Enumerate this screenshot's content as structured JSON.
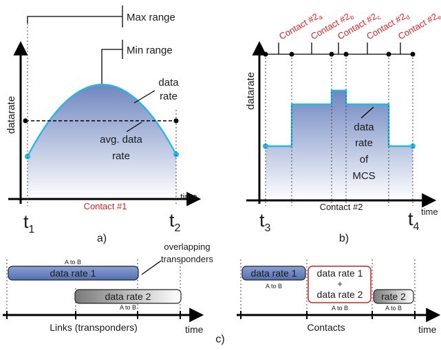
{
  "panel_a": {
    "ylabel": "datarate",
    "xlabel": "time",
    "max_range": "Max range",
    "min_range": "Min range",
    "data_rate": [
      "data",
      "rate"
    ],
    "avg_rate": [
      "avg. data",
      "rate"
    ],
    "contact": "Contact #1",
    "t_start": {
      "base": "t",
      "sub": "1"
    },
    "t_end": {
      "base": "t",
      "sub": "2"
    },
    "caption": "a)"
  },
  "panel_b": {
    "ylabel": "datarate",
    "xlabel": "time",
    "contacts": [
      {
        "base": "Contact #2",
        "sub": "a"
      },
      {
        "base": "Contact #2",
        "sub": "b"
      },
      {
        "base": "Contact #2",
        "sub": "c"
      },
      {
        "base": "Contact #2",
        "sub": "d"
      },
      {
        "base": "Contact #2",
        "sub": "e"
      }
    ],
    "mcs_label": [
      "data",
      "rate",
      "of",
      "MCS"
    ],
    "contact": "Contact #2",
    "t_start": {
      "base": "t",
      "sub": "3"
    },
    "t_end": {
      "base": "t",
      "sub": "4"
    },
    "caption": "b)"
  },
  "panel_c": {
    "left": {
      "link1": {
        "label": "data rate 1",
        "dir": "A to B"
      },
      "link2": {
        "label": "data rate 2",
        "dir": "A to B"
      },
      "overlap": [
        "overlapping",
        "transponders"
      ],
      "axis_label": "Links (transponders)",
      "time": "time"
    },
    "right": {
      "c1": {
        "label": "data rate 1",
        "dir": "A to B"
      },
      "c2": {
        "lines": [
          "data rate 1",
          "+",
          "data rate 2"
        ],
        "dir": "A to B"
      },
      "c3": {
        "label": "rate 2",
        "dir": "A to B"
      },
      "axis_label": "Contacts",
      "time": "time"
    },
    "caption": "c)"
  },
  "colors": {
    "curve": "#29b6e6",
    "contact_text": "#e02020",
    "fill_top": "#6f86c0",
    "bar_blue": "#6c86c4",
    "bar_gray": "#8c8c8c",
    "highlight_border": "#d42020"
  }
}
